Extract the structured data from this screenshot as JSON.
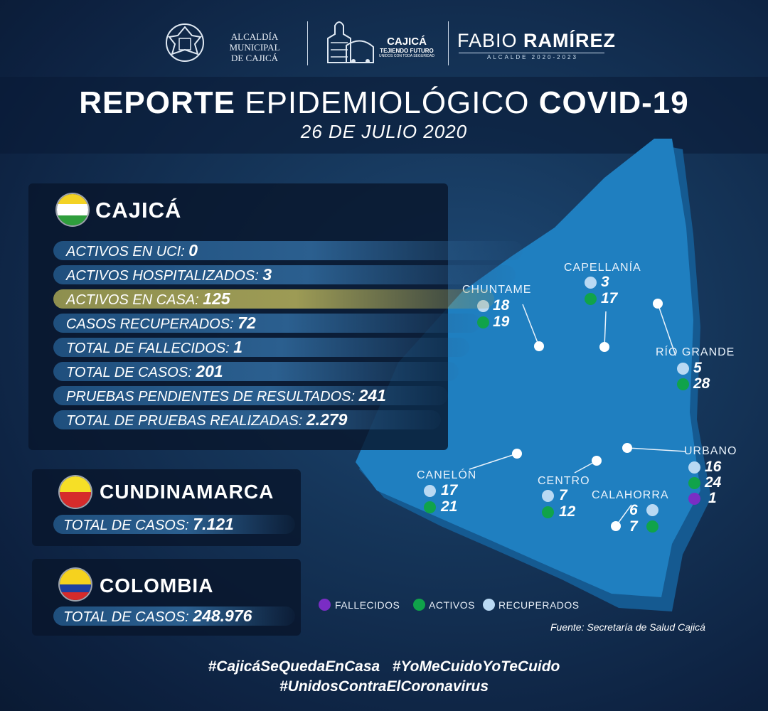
{
  "header": {
    "alcaldia_line1": "ALCALDÍA MUNICIPAL",
    "alcaldia_line2": "DE CAJICÁ",
    "cajica_brand": "CAJICÁ",
    "cajica_slogan": "TEJIENDO FUTURO",
    "cajica_slogan2": "UNIDOS CON TODA SEGURIDAD",
    "mayor_first": "FABIO",
    "mayor_last": "RAMÍREZ",
    "mayor_role": "ALCALDE 2020-2023"
  },
  "title": {
    "part1": "REPORTE",
    "part2": "EPIDEMIOLÓGICO",
    "part3": "COVID-19",
    "date": "26 DE JULIO 2020"
  },
  "cajica": {
    "name": "CAJICÁ",
    "rows": [
      {
        "label": "ACTIVOS EN UCI:",
        "value": "0"
      },
      {
        "label": "ACTIVOS HOSPITALIZADOS:",
        "value": "3"
      },
      {
        "label": "ACTIVOS EN CASA:",
        "value": "125"
      },
      {
        "label": "CASOS RECUPERADOS:",
        "value": "72"
      },
      {
        "label": "TOTAL DE FALLECIDOS:",
        "value": "1"
      },
      {
        "label": "TOTAL DE CASOS:",
        "value": "201"
      },
      {
        "label": "PRUEBAS PENDIENTES DE RESULTADOS:",
        "value": "241"
      },
      {
        "label": "TOTAL DE PRUEBAS REALIZADAS:",
        "value": "2.279"
      }
    ]
  },
  "cundinamarca": {
    "name": "CUNDINAMARCA",
    "label": "TOTAL DE CASOS:",
    "value": "7.121"
  },
  "colombia": {
    "name": "COLOMBIA",
    "label": "TOTAL DE CASOS:",
    "value": "248.976"
  },
  "map": {
    "sectors": {
      "capellania": {
        "name": "CAPELLANÍA",
        "recuperados": "3",
        "activos": "17"
      },
      "chuntame": {
        "name": "CHUNTAME",
        "recuperados": "18",
        "activos": "19"
      },
      "rio_grande": {
        "name": "RÍO GRANDE",
        "recuperados": "5",
        "activos": "28"
      },
      "urbano": {
        "name": "URBANO",
        "recuperados": "16",
        "activos": "24",
        "fallecidos": "1"
      },
      "canelon": {
        "name": "CANELÓN",
        "recuperados": "17",
        "activos": "21"
      },
      "centro": {
        "name": "CENTRO",
        "recuperados": "7",
        "activos": "12"
      },
      "calahorra": {
        "name": "CALAHORRA",
        "recuperados": "6",
        "activos": "7"
      }
    },
    "fill_color": "#1f7fc0",
    "legend": {
      "fallecidos": "FALLECIDOS",
      "activos": "ACTIVOS",
      "recuperados": "RECUPERADOS"
    },
    "colors": {
      "fallecidos": "#7a2dc4",
      "activos": "#10a34a",
      "recuperados": "#b9d9f3"
    }
  },
  "source": "Fuente: Secretaría de Salud Cajicá",
  "hashtags": {
    "line1a": "#CajicáSeQuedaEnCasa",
    "line1b": "#YoMeCuidoYoTeCuido",
    "line2": "#UnidosContraElCoronavirus"
  }
}
